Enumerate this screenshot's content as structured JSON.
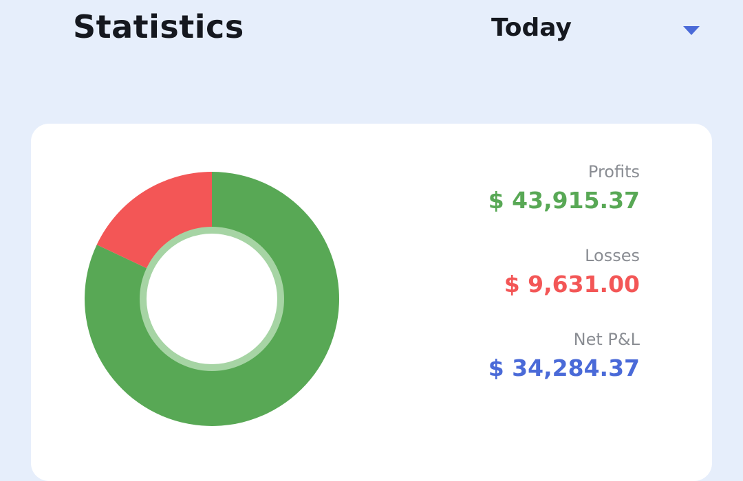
{
  "header": {
    "title": "Statistics",
    "period": {
      "selected": "Today",
      "icon": "chevron-down-icon"
    }
  },
  "colors": {
    "profit": "#58a855",
    "loss": "#f35656",
    "net": "#4a6ad8",
    "accent": "#4a6ad8"
  },
  "stats": {
    "profits": {
      "label": "Profits",
      "value": "$ 43,915.37"
    },
    "losses": {
      "label": "Losses",
      "value": "$ 9,631.00"
    },
    "net": {
      "label": "Net P&L",
      "value": "$ 34,284.37"
    }
  },
  "chart_data": {
    "type": "pie",
    "categories": [
      "Profits",
      "Losses"
    ],
    "values": [
      43915.37,
      9631.0
    ]
  }
}
